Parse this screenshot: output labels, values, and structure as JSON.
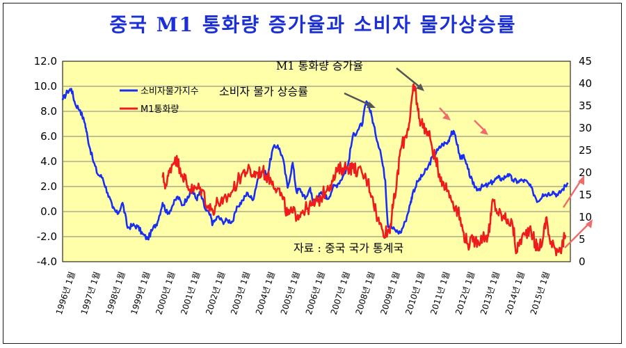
{
  "title": "중국 M1 통화량 증가율과 소비자 물가상승률",
  "chart_data": {
    "type": "line",
    "title": "중국 M1 통화량 증가율과 소비자 물가상승률",
    "y_left": {
      "ylim": [
        -4,
        12
      ],
      "ticks": [
        "12.0",
        "10.0",
        "8.0",
        "6.0",
        "4.0",
        "2.0",
        "0.0",
        "-2.0",
        "-4.0"
      ]
    },
    "y_right": {
      "ylim": [
        0,
        45
      ],
      "ticks": [
        "45",
        "40",
        "35",
        "30",
        "25",
        "20",
        "15",
        "10",
        "5",
        "0"
      ]
    },
    "x_labels": [
      "1996년 1월",
      "1997년 1월",
      "1998년 1월",
      "1999년 1월",
      "2000년 1월",
      "2001년 1월",
      "2002년 1월",
      "2003년 1월",
      "2004년 1월",
      "2005년 1월",
      "2006년 1월",
      "2007년 1월",
      "2008년 1월",
      "2009년 1월",
      "2010년 1월",
      "2011년 1월",
      "2012년 1월",
      "2013년 1월",
      "2014년 1월",
      "2015년 1월"
    ],
    "x_range": [
      1996.0,
      2016.3
    ],
    "legend": [
      {
        "name": "소비자물가지수",
        "color": "#1a2ef0"
      },
      {
        "name": "M1통화량",
        "color": "#ee1c1c"
      }
    ],
    "series": [
      {
        "name": "소비자물가지수",
        "axis": "left",
        "color": "#1a2ef0",
        "x": [
          1996.0,
          1996.2,
          1996.35,
          1996.5,
          1996.7,
          1996.9,
          1997.0,
          1997.2,
          1997.4,
          1997.6,
          1997.8,
          1998.0,
          1998.2,
          1998.4,
          1998.6,
          1998.8,
          1999.0,
          1999.2,
          1999.4,
          1999.6,
          1999.8,
          2000.0,
          2000.2,
          2000.4,
          2000.6,
          2000.8,
          2001.0,
          2001.2,
          2001.35,
          2001.5,
          2001.7,
          2001.9,
          2002.0,
          2002.2,
          2002.4,
          2002.6,
          2002.8,
          2003.0,
          2003.2,
          2003.4,
          2003.6,
          2003.8,
          2004.0,
          2004.2,
          2004.4,
          2004.6,
          2004.8,
          2005.0,
          2005.2,
          2005.35,
          2005.5,
          2005.7,
          2005.9,
          2006.0,
          2006.2,
          2006.4,
          2006.6,
          2006.8,
          2007.0,
          2007.2,
          2007.4,
          2007.6,
          2007.8,
          2008.0,
          2008.1,
          2008.2,
          2008.35,
          2008.5,
          2008.7,
          2008.9,
          2009.0,
          2009.1,
          2009.3,
          2009.5,
          2009.7,
          2009.9,
          2010.0,
          2010.2,
          2010.4,
          2010.6,
          2010.8,
          2011.0,
          2011.2,
          2011.4,
          2011.55,
          2011.7,
          2011.9,
          2012.0,
          2012.2,
          2012.4,
          2012.6,
          2012.8,
          2013.0,
          2013.2,
          2013.4,
          2013.6,
          2013.8,
          2014.0,
          2014.2,
          2014.4,
          2014.6,
          2014.8,
          2015.0,
          2015.2,
          2015.4,
          2015.6,
          2015.8,
          2016.0,
          2016.2
        ],
        "values": [
          8.9,
          9.6,
          9.8,
          8.6,
          8.1,
          7.0,
          5.9,
          4.2,
          3.0,
          2.7,
          1.5,
          0.3,
          -0.2,
          0.7,
          -1.3,
          -1.1,
          -1.2,
          -1.8,
          -2.2,
          -1.4,
          -0.8,
          0.7,
          -0.2,
          0.5,
          1.2,
          0.5,
          1.2,
          1.6,
          1.0,
          1.5,
          0.2,
          -0.3,
          -1.0,
          -0.4,
          -0.8,
          -0.7,
          -0.8,
          0.4,
          0.9,
          1.5,
          0.9,
          2.6,
          3.2,
          3.0,
          5.0,
          5.3,
          4.3,
          1.9,
          3.9,
          1.6,
          1.8,
          1.0,
          1.9,
          0.8,
          1.2,
          1.5,
          1.0,
          1.9,
          2.2,
          2.8,
          3.6,
          6.0,
          6.5,
          7.1,
          8.5,
          8.7,
          7.7,
          6.3,
          4.9,
          2.5,
          -1.0,
          -1.2,
          -1.5,
          -1.7,
          -0.8,
          0.6,
          1.5,
          2.4,
          2.9,
          3.5,
          4.4,
          4.9,
          5.4,
          5.5,
          6.4,
          6.1,
          4.2,
          4.5,
          3.4,
          2.2,
          1.8,
          2.0,
          2.1,
          2.4,
          2.7,
          2.6,
          3.0,
          2.5,
          2.4,
          2.5,
          2.3,
          1.6,
          0.8,
          1.4,
          1.4,
          1.6,
          1.3,
          1.8,
          2.3
        ]
      },
      {
        "name": "M1통화량",
        "axis": "right",
        "color": "#ee1c1c",
        "x": [
          2000.0,
          2000.15,
          2000.3,
          2000.5,
          2000.7,
          2000.9,
          2001.0,
          2001.2,
          2001.4,
          2001.6,
          2001.8,
          2002.0,
          2002.2,
          2002.4,
          2002.6,
          2002.8,
          2003.0,
          2003.2,
          2003.4,
          2003.6,
          2003.8,
          2004.0,
          2004.2,
          2004.4,
          2004.6,
          2004.8,
          2005.0,
          2005.2,
          2005.4,
          2005.6,
          2005.8,
          2006.0,
          2006.2,
          2006.4,
          2006.6,
          2006.8,
          2007.0,
          2007.2,
          2007.4,
          2007.6,
          2007.8,
          2008.0,
          2008.2,
          2008.4,
          2008.6,
          2008.8,
          2009.0,
          2009.1,
          2009.2,
          2009.35,
          2009.5,
          2009.7,
          2009.85,
          2010.0,
          2010.1,
          2010.2,
          2010.35,
          2010.5,
          2010.7,
          2010.9,
          2011.0,
          2011.2,
          2011.4,
          2011.6,
          2011.8,
          2012.0,
          2012.2,
          2012.4,
          2012.6,
          2012.8,
          2013.0,
          2013.1,
          2013.2,
          2013.4,
          2013.6,
          2013.8,
          2014.0,
          2014.15,
          2014.3,
          2014.5,
          2014.7,
          2014.9,
          2015.0,
          2015.2,
          2015.35,
          2015.5,
          2015.7,
          2015.9,
          2016.0,
          2016.1
        ],
        "values": [
          18.9,
          17.0,
          21.0,
          23.4,
          21.0,
          18.5,
          17.0,
          16.0,
          16.5,
          16.0,
          12.5,
          11.5,
          13.5,
          13.0,
          14.5,
          16.0,
          18.0,
          20.0,
          20.5,
          19.5,
          20.0,
          20.2,
          19.0,
          18.0,
          16.5,
          14.0,
          10.5,
          11.0,
          10.5,
          11.5,
          12.0,
          12.7,
          13.5,
          15.0,
          17.0,
          18.0,
          20.5,
          21.0,
          21.3,
          21.0,
          20.5,
          19.5,
          18.0,
          14.5,
          9.5,
          7.0,
          6.7,
          8.0,
          12.0,
          17.0,
          25.0,
          28.0,
          31.0,
          38.0,
          39.0,
          34.0,
          31.0,
          30.0,
          27.5,
          23.0,
          21.0,
          18.0,
          16.0,
          13.5,
          11.5,
          7.0,
          4.0,
          4.5,
          4.8,
          5.5,
          6.0,
          8.5,
          14.0,
          11.0,
          10.0,
          9.5,
          8.0,
          2.0,
          5.0,
          6.0,
          8.0,
          3.8,
          3.0,
          5.0,
          10.0,
          4.0,
          3.0,
          3.0,
          4.0,
          6.0
        ]
      }
    ],
    "annotations": {
      "m1_label": "M1 통화량 증가율",
      "cpi_label": "소비자 물가 상승률",
      "source": "자료 : 중국 국가 통계국"
    }
  }
}
